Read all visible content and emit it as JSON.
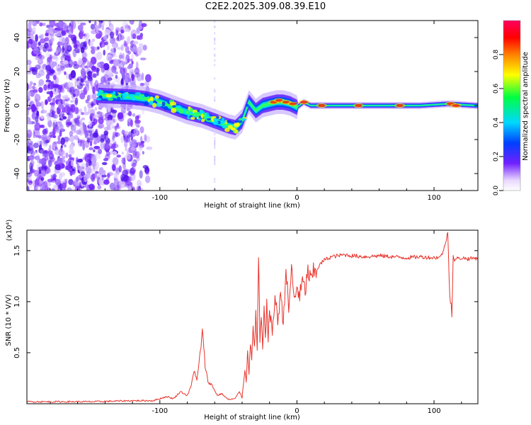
{
  "title": "C2E2.2025.309.08.39.E10",
  "colors": {
    "axis": "#000000",
    "snr_line": "#e8342c",
    "background": "#ffffff"
  },
  "chart_data": [
    {
      "type": "heatmap",
      "name": "spectrogram",
      "xlabel": "Height of straight line (km)",
      "ylabel": "Frequency (Hz)",
      "xlim": [
        -197,
        132
      ],
      "ylim": [
        -50,
        50
      ],
      "xticks": [
        -100,
        0,
        100
      ],
      "yticks": [
        -40,
        -20,
        0,
        20,
        40
      ],
      "xticklabels": [
        "-100",
        "0",
        "100"
      ],
      "yticklabels": [
        "-40",
        "-20",
        "0",
        "20",
        "40"
      ],
      "colorbar": {
        "label": "Normalized spectral amplitude",
        "range": [
          0,
          1
        ],
        "ticks": [
          0.0,
          0.2,
          0.4,
          0.6,
          0.8
        ],
        "ticklabels": [
          "0.0",
          "0.2",
          "0.4",
          "0.6",
          "0.8"
        ],
        "colors": [
          "#ffffff",
          "#7020ff",
          "#0040ff",
          "#00d8ff",
          "#00ff40",
          "#ffff00",
          "#ff8000",
          "#ff0000",
          "#ff0060"
        ]
      },
      "ridge": {
        "x": [
          -145,
          -120,
          -110,
          -100,
          -90,
          -80,
          -70,
          -60,
          -50,
          -45,
          -40,
          -35,
          -30,
          -25,
          -20,
          -15,
          -10,
          -5,
          0,
          5,
          10,
          20,
          30,
          50,
          70,
          90,
          110,
          130
        ],
        "y": [
          6,
          5,
          4,
          2,
          -1,
          -4,
          -6,
          -9,
          -12,
          -13,
          -9,
          2,
          -3,
          0,
          1,
          2,
          2,
          1,
          -1,
          2,
          0,
          0,
          0,
          0,
          0,
          0,
          1,
          0
        ]
      }
    },
    {
      "type": "line",
      "name": "snr",
      "xlabel": "Height of straight line (km)",
      "ylabel": "SNR (10 * V/V)",
      "y_exponent": "(x10⁴)",
      "xlim": [
        -197,
        132
      ],
      "ylim": [
        0,
        1.7
      ],
      "xticks": [
        -100,
        0,
        100
      ],
      "yticks": [
        0.5,
        1.0,
        1.5
      ],
      "xticklabels": [
        "-100",
        "0",
        "100"
      ],
      "yticklabels": [
        "0.5",
        "1.0",
        "1.5"
      ],
      "series": [
        {
          "name": "SNR",
          "x": [
            -197,
            -150,
            -120,
            -105,
            -95,
            -90,
            -85,
            -80,
            -77,
            -75,
            -73,
            -71,
            -69,
            -67,
            -65,
            -62,
            -58,
            -55,
            -50,
            -45,
            -42,
            -40,
            -38,
            -37,
            -36,
            -35,
            -34,
            -33,
            -32,
            -31,
            -30,
            -29,
            -28,
            -27,
            -26,
            -25,
            -24,
            -23,
            -22,
            -21,
            -20,
            -18,
            -16,
            -14,
            -12,
            -10,
            -8,
            -6,
            -4,
            -2,
            0,
            2,
            4,
            6,
            8,
            10,
            12,
            14,
            16,
            18,
            20,
            22,
            25,
            30,
            35,
            40,
            50,
            60,
            70,
            80,
            90,
            100,
            105,
            108,
            110,
            111,
            112,
            113,
            114,
            115,
            116,
            118,
            120,
            125,
            132
          ],
          "y": [
            0.02,
            0.02,
            0.03,
            0.03,
            0.07,
            0.05,
            0.12,
            0.08,
            0.18,
            0.34,
            0.22,
            0.45,
            0.7,
            0.38,
            0.22,
            0.18,
            0.08,
            0.1,
            0.04,
            0.05,
            0.12,
            0.06,
            0.35,
            0.2,
            0.55,
            0.3,
            0.62,
            0.4,
            0.75,
            0.55,
            0.9,
            0.5,
            1.44,
            0.6,
            0.85,
            0.5,
            0.95,
            0.6,
            1.02,
            0.65,
            0.9,
            0.7,
            1.05,
            0.8,
            1.1,
            0.78,
            1.33,
            0.9,
            1.35,
            1.0,
            1.15,
            1.05,
            1.2,
            1.1,
            1.3,
            1.2,
            1.28,
            1.3,
            1.35,
            1.38,
            1.41,
            1.42,
            1.44,
            1.45,
            1.46,
            1.45,
            1.44,
            1.45,
            1.44,
            1.43,
            1.44,
            1.43,
            1.44,
            1.55,
            1.68,
            1.3,
            1.0,
            0.91,
            1.45,
            1.38,
            1.43,
            1.42,
            1.43,
            1.42,
            1.43
          ]
        }
      ]
    }
  ]
}
